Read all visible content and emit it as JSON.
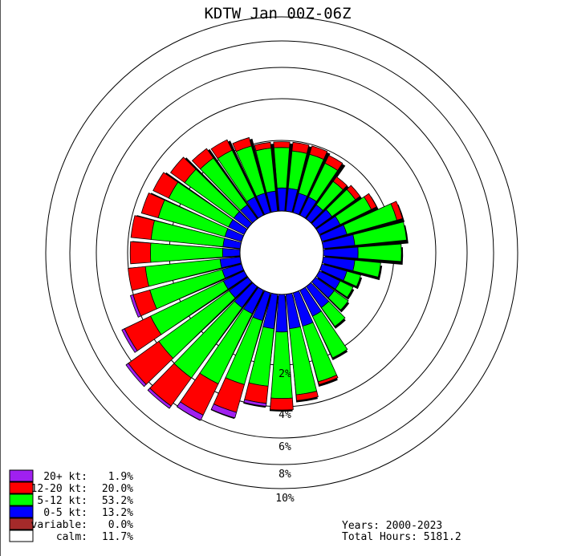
{
  "chart_data": {
    "type": "windrose",
    "title": "KDTW Jan 00Z-06Z",
    "ring_labels": [
      "2%",
      "4%",
      "6%",
      "8%",
      "10%"
    ],
    "ring_values": [
      2,
      4,
      6,
      8,
      10
    ],
    "speed_bins": [
      {
        "label": "0-5 kt:",
        "percent": "13.2%",
        "color": "#0000ff"
      },
      {
        "label": "5-12 kt:",
        "percent": "53.2%",
        "color": "#00ff00"
      },
      {
        "label": "12-20 kt:",
        "percent": "20.0%",
        "color": "#ff0000"
      },
      {
        "label": "20+ kt:",
        "percent": "1.9%",
        "color": "#a020f0"
      }
    ],
    "legend": [
      {
        "label": "20+ kt:",
        "percent": "1.9%",
        "color": "#a020f0"
      },
      {
        "label": "12-20 kt:",
        "percent": "20.0%",
        "color": "#ff0000"
      },
      {
        "label": "5-12 kt:",
        "percent": "53.2%",
        "color": "#00ff00"
      },
      {
        "label": "0-5 kt:",
        "percent": "13.2%",
        "color": "#0000ff"
      },
      {
        "label": "variable:",
        "percent": "0.0%",
        "color": "#a52a2a"
      },
      {
        "label": "calm:",
        "percent": "11.7%",
        "color": "#ffffff"
      }
    ],
    "directions_deg": [
      0,
      10,
      20,
      30,
      40,
      50,
      60,
      70,
      80,
      90,
      100,
      110,
      120,
      130,
      140,
      150,
      160,
      170,
      180,
      190,
      200,
      210,
      220,
      230,
      240,
      250,
      260,
      270,
      280,
      290,
      300,
      310,
      320,
      330,
      340,
      350
    ],
    "series": [
      {
        "name": "0-5 kt",
        "values": [
          0.8,
          0.8,
          0.7,
          0.7,
          0.6,
          0.7,
          0.8,
          0.9,
          1.1,
          1.2,
          1.1,
          0.9,
          0.8,
          0.8,
          0.9,
          1.0,
          1.2,
          1.2,
          1.3,
          1.2,
          1.0,
          0.9,
          0.9,
          0.8,
          0.8,
          0.7,
          0.7,
          0.6,
          0.6,
          0.6,
          0.6,
          0.6,
          0.6,
          0.7,
          0.7,
          0.7
        ]
      },
      {
        "name": "5-12 kt",
        "values": [
          1.4,
          1.3,
          1.4,
          1.3,
          1.0,
          1.0,
          1.2,
          1.8,
          1.8,
          1.5,
          0.9,
          0.5,
          0.5,
          0.6,
          0.8,
          1.6,
          2.0,
          2.3,
          2.3,
          2.0,
          2.3,
          2.7,
          3.0,
          3.0,
          2.8,
          2.6,
          2.6,
          2.5,
          2.5,
          2.4,
          2.3,
          2.1,
          2.0,
          1.8,
          1.7,
          1.5
        ]
      },
      {
        "name": "12-20 kt",
        "values": [
          0.2,
          0.3,
          0.3,
          0.3,
          0.2,
          0.2,
          0.2,
          0.2,
          0.0,
          0.0,
          0.0,
          0.0,
          0.0,
          0.0,
          0.0,
          0.0,
          0.1,
          0.2,
          0.4,
          0.6,
          1.0,
          1.2,
          1.2,
          1.3,
          1.0,
          0.6,
          0.6,
          0.7,
          0.7,
          0.6,
          0.6,
          0.6,
          0.4,
          0.4,
          0.3,
          0.2
        ]
      },
      {
        "name": "20+ kt",
        "values": [
          0,
          0,
          0,
          0,
          0,
          0,
          0,
          0,
          0,
          0,
          0,
          0,
          0,
          0,
          0,
          0,
          0,
          0,
          0,
          0.1,
          0.2,
          0.2,
          0.1,
          0.1,
          0.1,
          0.1,
          0,
          0,
          0,
          0,
          0,
          0,
          0,
          0,
          0,
          0
        ]
      }
    ]
  },
  "stats": {
    "years": "Years: 2000-2023",
    "total_hours": "Total Hours: 5181.2"
  }
}
